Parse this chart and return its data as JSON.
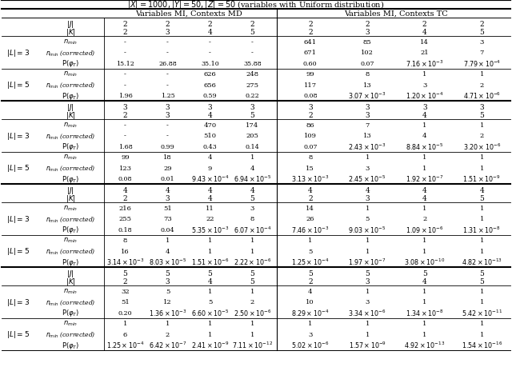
{
  "title": "$|X| = 1000, |Y| = 50, |Z| = 50$ (variables with Uniform distribution)",
  "sections": [
    {
      "J_md": [
        "2",
        "2",
        "2",
        "2"
      ],
      "K_md": [
        "2",
        "3",
        "4",
        "5"
      ],
      "J_tc": [
        "2",
        "2",
        "2",
        "2"
      ],
      "K_tc": [
        "2",
        "3",
        "4",
        "5"
      ],
      "L3": {
        "nmin_md": [
          "-",
          "-",
          "-",
          "-"
        ],
        "nmin_corr_md": [
          "-",
          "-",
          "-",
          "-"
        ],
        "p_md": [
          "15.12",
          "26.88",
          "35.10",
          "35.88"
        ],
        "nmin_tc": [
          "641",
          "85",
          "14",
          "3"
        ],
        "nmin_corr_tc": [
          "671",
          "102",
          "21",
          "7"
        ],
        "p_tc": [
          "0.60",
          "0.07",
          "7.16\\times10^{-3}",
          "7.79\\times10^{-4}"
        ]
      },
      "L5": {
        "nmin_md": [
          "-",
          "-",
          "626",
          "248"
        ],
        "nmin_corr_md": [
          "-",
          "-",
          "656",
          "275"
        ],
        "p_md": [
          "1.96",
          "1.25",
          "0.59",
          "0.22"
        ],
        "nmin_tc": [
          "99",
          "8",
          "1",
          "1"
        ],
        "nmin_corr_tc": [
          "117",
          "13",
          "3",
          "2"
        ],
        "p_tc": [
          "0.08",
          "3.07\\times10^{-3}",
          "1.20\\times10^{-4}",
          "4.71\\times10^{-6}"
        ]
      }
    },
    {
      "J_md": [
        "3",
        "3",
        "3",
        "3"
      ],
      "K_md": [
        "2",
        "3",
        "4",
        "5"
      ],
      "J_tc": [
        "3",
        "3",
        "3",
        "3"
      ],
      "K_tc": [
        "2",
        "3",
        "4",
        "5"
      ],
      "L3": {
        "nmin_md": [
          "-",
          "-",
          "470",
          "174"
        ],
        "nmin_corr_md": [
          "-",
          "-",
          "510",
          "205"
        ],
        "p_md": [
          "1.68",
          "0.99",
          "0.43",
          "0.14"
        ],
        "nmin_tc": [
          "86",
          "7",
          "1",
          "1"
        ],
        "nmin_corr_tc": [
          "109",
          "13",
          "4",
          "2"
        ],
        "p_tc": [
          "0.07",
          "2.43\\times10^{-3}",
          "8.84\\times10^{-5}",
          "3.20\\times10^{-6}"
        ]
      },
      "L5": {
        "nmin_md": [
          "99",
          "18",
          "4",
          "1"
        ],
        "nmin_corr_md": [
          "123",
          "29",
          "9",
          "4"
        ],
        "p_md": [
          "0.08",
          "0.01",
          "9.43\\times10^{-4}",
          "6.94\\times10^{-5}"
        ],
        "nmin_tc": [
          "8",
          "1",
          "1",
          "1"
        ],
        "nmin_corr_tc": [
          "15",
          "3",
          "1",
          "1"
        ],
        "p_tc": [
          "3.13\\times10^{-3}",
          "2.45\\times10^{-5}",
          "1.92\\times10^{-7}",
          "1.51\\times10^{-9}"
        ]
      }
    },
    {
      "J_md": [
        "4",
        "4",
        "4",
        "4"
      ],
      "K_md": [
        "2",
        "3",
        "4",
        "5"
      ],
      "J_tc": [
        "4",
        "4",
        "4",
        "4"
      ],
      "K_tc": [
        "2",
        "3",
        "4",
        "5"
      ],
      "L3": {
        "nmin_md": [
          "216",
          "51",
          "11",
          "3"
        ],
        "nmin_corr_md": [
          "255",
          "73",
          "22",
          "8"
        ],
        "p_md": [
          "0.18",
          "0.04",
          "5.35\\times10^{-3}",
          "6.07\\times10^{-4}"
        ],
        "nmin_tc": [
          "14",
          "1",
          "1",
          "1"
        ],
        "nmin_corr_tc": [
          "26",
          "5",
          "2",
          "1"
        ],
        "p_tc": [
          "7.46\\times10^{-3}",
          "9.03\\times10^{-5}",
          "1.09\\times10^{-6}",
          "1.31\\times10^{-8}"
        ]
      },
      "L5": {
        "nmin_md": [
          "8",
          "1",
          "1",
          "1"
        ],
        "nmin_corr_md": [
          "16",
          "4",
          "1",
          "1"
        ],
        "p_md": [
          "3.14\\times10^{-3}",
          "8.03\\times10^{-5}",
          "1.51\\times10^{-6}",
          "2.22\\times10^{-6}"
        ],
        "nmin_tc": [
          "1",
          "1",
          "1",
          "1"
        ],
        "nmin_corr_tc": [
          "5",
          "1",
          "1",
          "1"
        ],
        "p_tc": [
          "1.25\\times10^{-4}",
          "1.97\\times10^{-7}",
          "3.08\\times10^{-10}",
          "4.82\\times10^{-13}"
        ]
      }
    },
    {
      "J_md": [
        "5",
        "5",
        "5",
        "5"
      ],
      "K_md": [
        "2",
        "3",
        "4",
        "5"
      ],
      "J_tc": [
        "5",
        "5",
        "5",
        "5"
      ],
      "K_tc": [
        "2",
        "3",
        "4",
        "5"
      ],
      "L3": {
        "nmin_md": [
          "32",
          "5",
          "1",
          "1"
        ],
        "nmin_corr_md": [
          "51",
          "12",
          "5",
          "2"
        ],
        "p_md": [
          "0.20",
          "1.36\\times10^{-3}",
          "6.60\\times10^{-5}",
          "2.50\\times10^{-6}"
        ],
        "nmin_tc": [
          "4",
          "1",
          "1",
          "1"
        ],
        "nmin_corr_tc": [
          "10",
          "3",
          "1",
          "1"
        ],
        "p_tc": [
          "8.29\\times10^{-4}",
          "3.34\\times10^{-6}",
          "1.34\\times10^{-8}",
          "5.42\\times10^{-11}"
        ]
      },
      "L5": {
        "nmin_md": [
          "1",
          "1",
          "1",
          "1"
        ],
        "nmin_corr_md": [
          "6",
          "2",
          "1",
          "1"
        ],
        "p_md": [
          "1.25\\times10^{-4}",
          "6.42\\times10^{-7}",
          "2.41\\times10^{-9}",
          "7.11\\times10^{-12}"
        ],
        "nmin_tc": [
          "1",
          "1",
          "1",
          "1"
        ],
        "nmin_corr_tc": [
          "3",
          "1",
          "1",
          "1"
        ],
        "p_tc": [
          "5.02\\times10^{-6}",
          "1.57\\times10^{-9}",
          "4.92\\times10^{-13}",
          "1.54\\times10^{-16}"
        ]
      }
    }
  ]
}
